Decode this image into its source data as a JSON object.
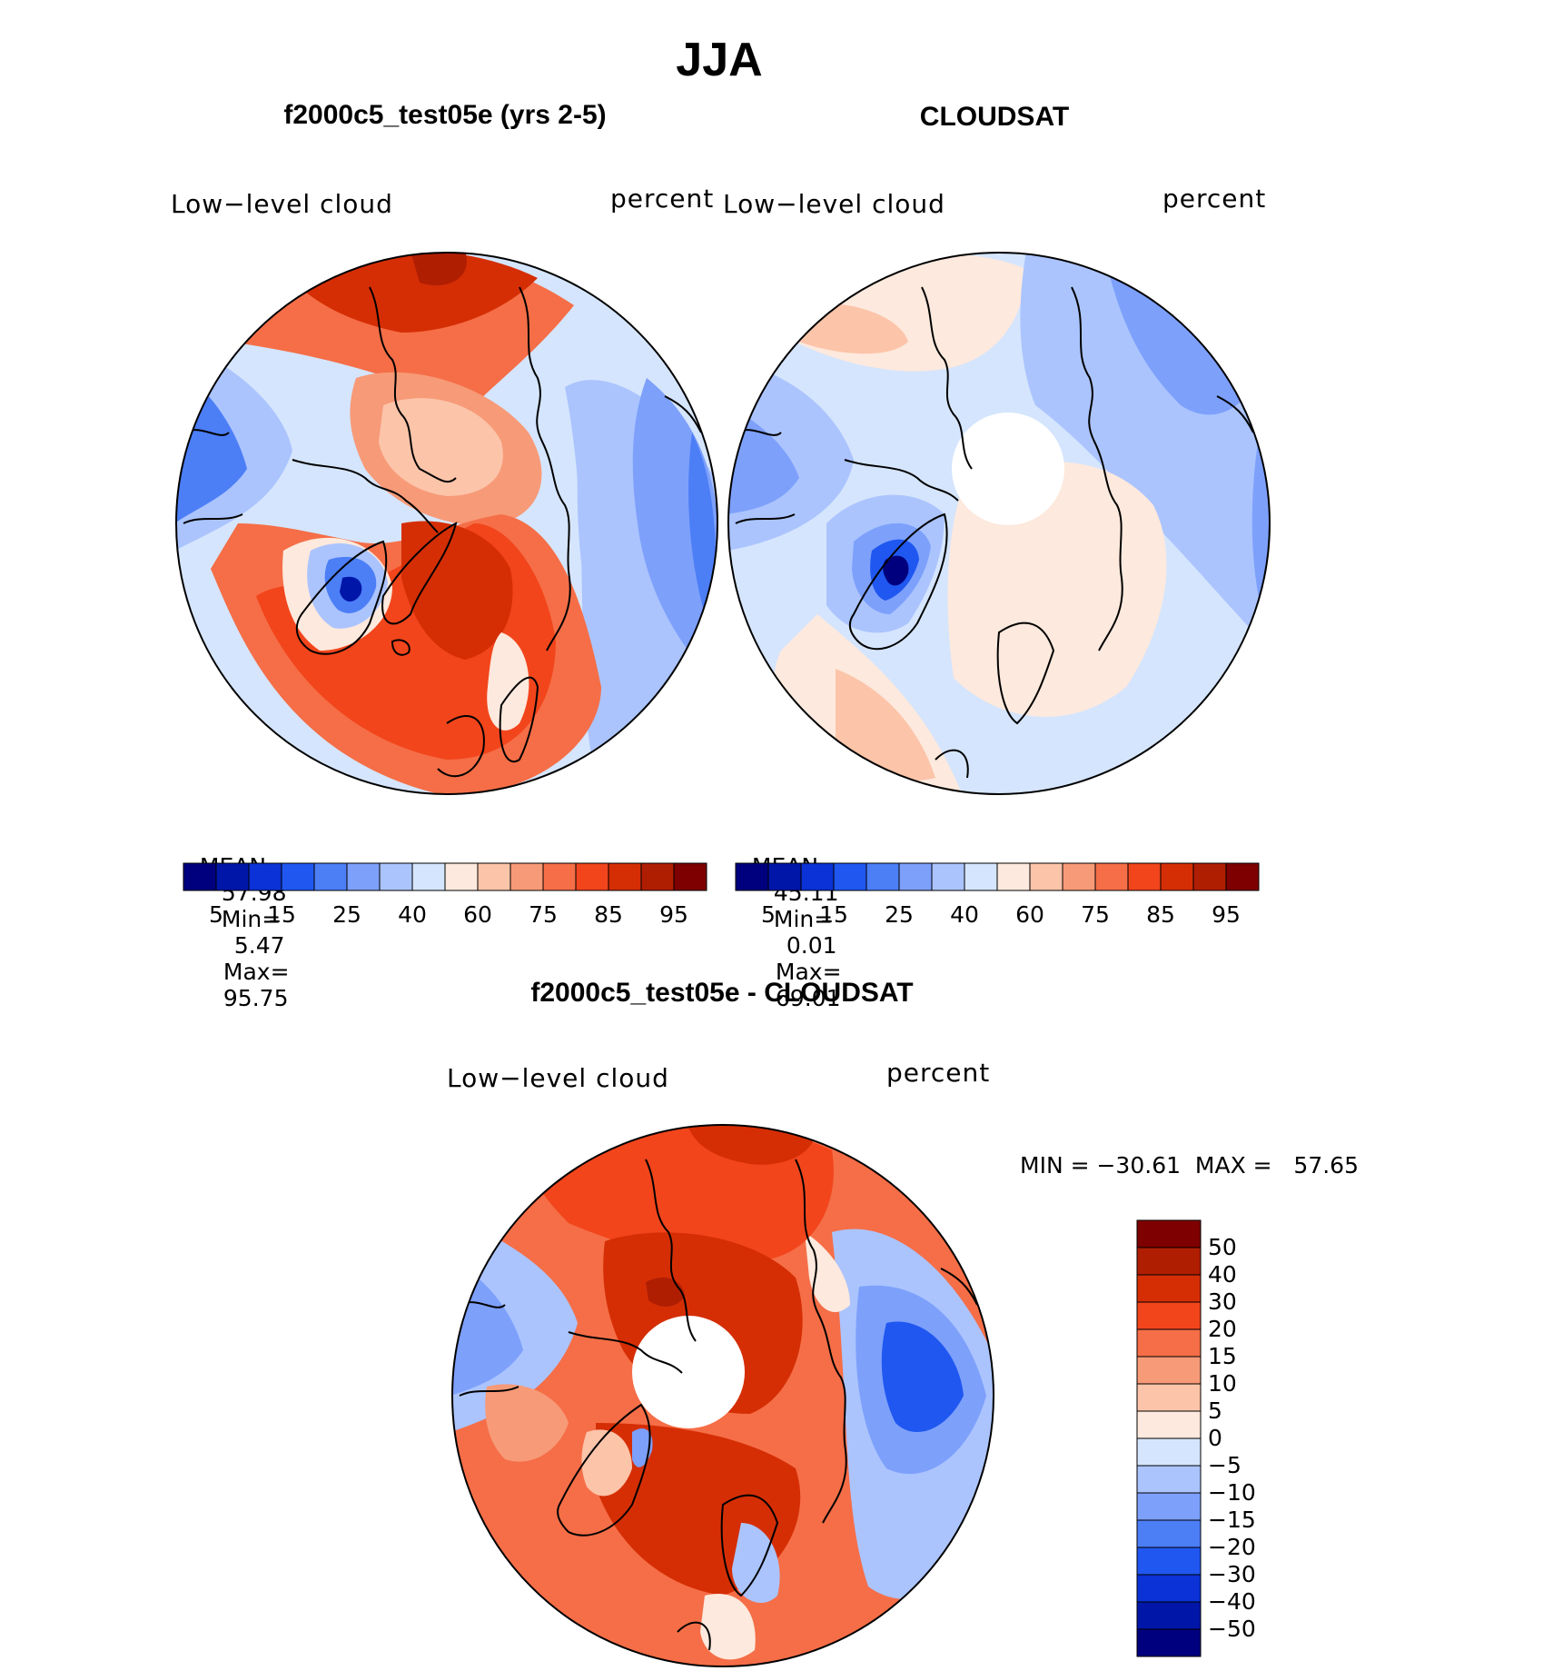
{
  "main_title": "JJA",
  "panels": [
    {
      "title": "f2000c5_test05e (yrs 2-5)",
      "left_label": "Low−level cloud",
      "right_label": "percent",
      "stats": {
        "mean_label": "MEAN=",
        "mean": "57.98",
        "min_label": "Min=",
        "min": "5.47",
        "max_label": "Max=",
        "max": "95.75"
      }
    },
    {
      "title": "CLOUDSAT",
      "left_label": "Low−level cloud",
      "right_label": "percent",
      "stats": {
        "mean_label": "MEAN=",
        "mean": "45.11",
        "min_label": "Min=",
        "min": "0.01",
        "max_label": "Max=",
        "max": "69.01"
      }
    },
    {
      "title": "f2000c5_test05e - CLOUDSAT",
      "left_label": "Low−level cloud",
      "right_label": "percent",
      "stats_text": "MIN = −30.61  MAX =   57.65"
    }
  ],
  "colorbar_abs": {
    "colors": [
      "#00007e",
      "#0016a8",
      "#0a32d6",
      "#1f57f0",
      "#4c7ef6",
      "#7da0fb",
      "#abc4fe",
      "#d5e5fd",
      "#fde9dd",
      "#fcc4a9",
      "#f79a78",
      "#f56e47",
      "#f2451c",
      "#d52e05",
      "#b01e02",
      "#7e0000"
    ],
    "tick_labels": [
      "5",
      "15",
      "25",
      "40",
      "60",
      "75",
      "85",
      "95"
    ]
  },
  "colorbar_diff": {
    "colors_top_to_bottom": [
      "#7e0000",
      "#b01e02",
      "#d52e05",
      "#f2451c",
      "#f56e47",
      "#f79a78",
      "#fcc4a9",
      "#fde9dd",
      "#d5e5fd",
      "#abc4fe",
      "#7da0fb",
      "#4c7ef6",
      "#1f57f0",
      "#0a32d6",
      "#0016a8",
      "#00007e"
    ],
    "tick_labels": [
      "50",
      "40",
      "30",
      "20",
      "15",
      "10",
      "5",
      "0",
      "−5",
      "−10",
      "−15",
      "−20",
      "−30",
      "−40",
      "−50"
    ]
  },
  "map_colors": {
    "deep_red": "#b01e02",
    "red": "#d52e05",
    "orange_red": "#f2451c",
    "orange": "#f56e47",
    "salmon": "#f79a78",
    "peach": "#fcc4a9",
    "cream": "#fde9dd",
    "pale_blue": "#d5e5fd",
    "light_blue": "#abc4fe",
    "mid_blue": "#7da0fb",
    "blue": "#4c7ef6",
    "strong_blue": "#1f57f0",
    "dark_blue": "#0016a8",
    "navy": "#00007e"
  }
}
